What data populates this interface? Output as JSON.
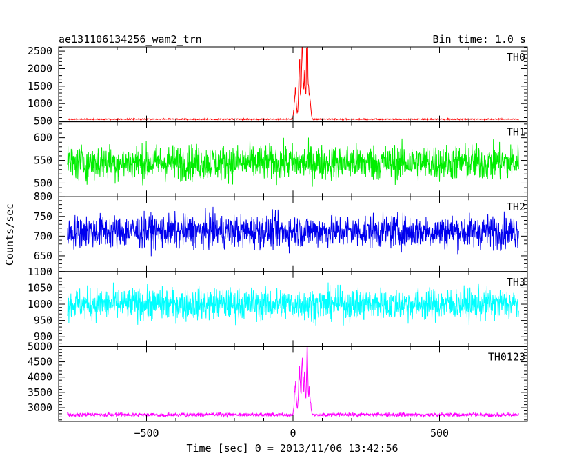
{
  "chart_data": {
    "type": "line",
    "title": "ae131106134256_wam2_trn",
    "bin_label": "Bin time: 1.0 s",
    "xlabel": "Time [sec] 0 = 2013/11/06 13:42:56",
    "ylabel": "Counts/sec",
    "xlim": [
      -800,
      800
    ],
    "x_ticks": [
      -500,
      0,
      500
    ],
    "data_x_range": [
      -770,
      770
    ],
    "grid": false,
    "panels": [
      {
        "name": "TH0",
        "color": "#ff0000",
        "ylim": [
          480,
          2620
        ],
        "y_ticks": [
          500,
          1000,
          1500,
          2000,
          2500
        ],
        "baseline": 555,
        "noise": 12,
        "burst": [
          {
            "t": 8,
            "peak": 780,
            "width": 5
          },
          {
            "t": 22,
            "peak": 1500,
            "width": 4
          },
          {
            "t": 32,
            "peak": 1950,
            "width": 4
          },
          {
            "t": 40,
            "peak": 1300,
            "width": 3
          },
          {
            "t": 48,
            "peak": 2650,
            "width": 3
          },
          {
            "t": 56,
            "peak": 900,
            "width": 5
          }
        ]
      },
      {
        "name": "TH1",
        "color": "#00ee00",
        "ylim": [
          470,
          635
        ],
        "y_ticks": [
          500,
          550,
          600
        ],
        "baseline": 545,
        "noise": 28,
        "burst": []
      },
      {
        "name": "TH2",
        "color": "#0000ee",
        "ylim": [
          610,
          800
        ],
        "y_ticks": [
          650,
          700,
          750,
          800
        ],
        "baseline": 712,
        "noise": 30,
        "burst": []
      },
      {
        "name": "TH3",
        "color": "#00ffff",
        "ylim": [
          870,
          1100
        ],
        "y_ticks": [
          900,
          950,
          1000,
          1050,
          1100
        ],
        "baseline": 1000,
        "noise": 35,
        "burst": []
      },
      {
        "name": "TH0123",
        "color": "#ff00ff",
        "ylim": [
          2550,
          5000
        ],
        "y_ticks": [
          3000,
          3500,
          4000,
          4500,
          5000
        ],
        "baseline": 2770,
        "noise": 45,
        "burst": [
          {
            "t": 8,
            "peak": 900,
            "width": 5
          },
          {
            "t": 22,
            "peak": 1500,
            "width": 4
          },
          {
            "t": 32,
            "peak": 1700,
            "width": 4
          },
          {
            "t": 40,
            "peak": 1200,
            "width": 3
          },
          {
            "t": 48,
            "peak": 2300,
            "width": 3
          },
          {
            "t": 56,
            "peak": 800,
            "width": 5
          }
        ]
      }
    ]
  }
}
